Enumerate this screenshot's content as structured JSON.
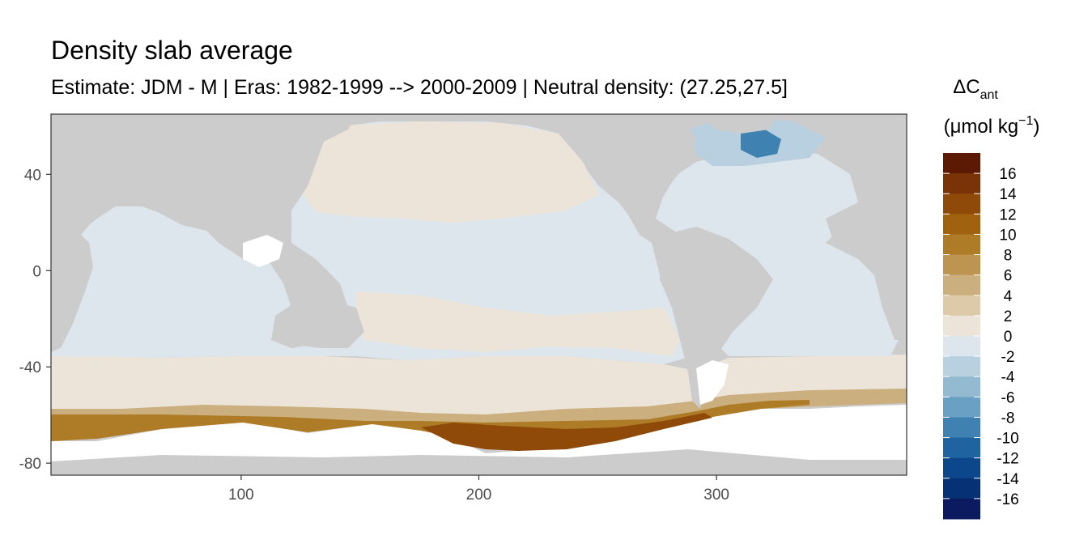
{
  "header": {
    "title": "Density slab average",
    "subtitle": "Estimate: JDM - M | Eras: 1982-1999 --> 2000-2009 | Neutral density: (27.25,27.5]"
  },
  "chart_data": {
    "type": "heatmap",
    "title": "Density slab average",
    "subtitle": "Estimate: JDM - M | Eras: 1982-1999 --> 2000-2009 | Neutral density: (27.25,27.5]",
    "xlabel": "",
    "ylabel": "",
    "xlim": [
      20,
      380
    ],
    "ylim": [
      -85,
      65
    ],
    "x_ticks": [
      100,
      200,
      300
    ],
    "y_ticks": [
      40,
      0,
      -40,
      -80
    ],
    "grid": false,
    "legend_position": "right",
    "legend": {
      "title_main": "ΔC",
      "title_sub": "ant",
      "title_unit_prefix": "(μmol kg",
      "title_unit_exp": "−1",
      "title_unit_suffix": ")",
      "breaks": [
        16,
        14,
        12,
        10,
        8,
        6,
        4,
        2,
        0,
        -2,
        -4,
        -6,
        -8,
        -10,
        -12,
        -14,
        -16
      ],
      "colors": [
        "#5c1a04",
        "#7a3306",
        "#8f4a09",
        "#a0620f",
        "#ae7b26",
        "#bd9450",
        "#cbaf7e",
        "#dccaa8",
        "#ece4d8",
        "#dde6ec",
        "#b9d0e0",
        "#94bad2",
        "#6aa0c4",
        "#3f82b2",
        "#1f64a0",
        "#0b478a",
        "#063275",
        "#0c1a60"
      ]
    },
    "background": {
      "land_color": "#cccccc",
      "no_data_color": "#ffffff",
      "frame_color": "#333333",
      "dominant_ocean_value_range": [
        -2,
        2
      ]
    }
  }
}
